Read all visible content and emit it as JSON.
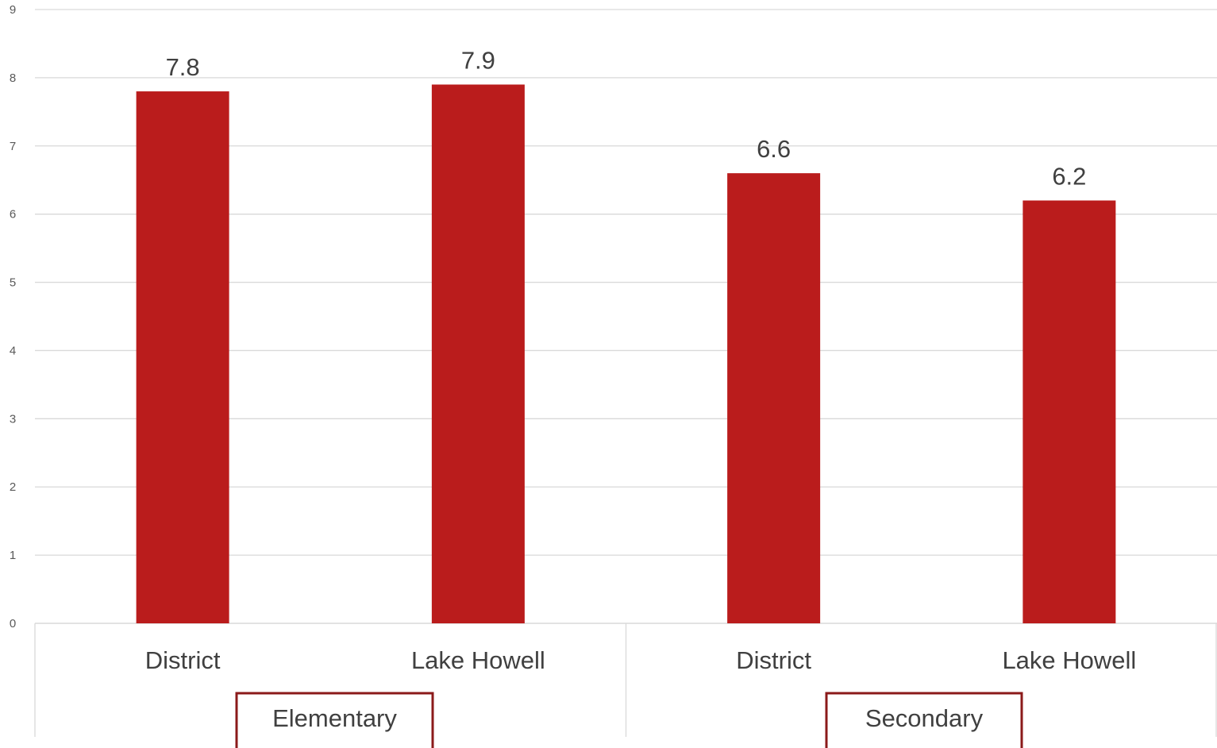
{
  "chart_data": {
    "type": "bar",
    "title": "",
    "xlabel": "",
    "ylabel": "",
    "ylim": [
      0,
      9
    ],
    "yticks": [
      "0",
      "1",
      "2",
      "3",
      "4",
      "5",
      "6",
      "7",
      "8",
      "9"
    ],
    "categories": [
      "District",
      "Lake Howell",
      "District",
      "Lake Howell"
    ],
    "groups": [
      {
        "label": "Elementary",
        "categories": [
          0,
          1
        ]
      },
      {
        "label": "Secondary",
        "categories": [
          2,
          3
        ]
      }
    ],
    "values": [
      7.8,
      7.9,
      6.6,
      6.2
    ],
    "value_labels": [
      "7.8",
      "7.9",
      "6.6",
      "6.2"
    ],
    "grid": true,
    "legend": "none",
    "colors": {
      "bar": "#BA1C1C",
      "group_box_border": "#8B1A1A",
      "gridline": "#D9D9D9",
      "text": "#404040"
    }
  }
}
